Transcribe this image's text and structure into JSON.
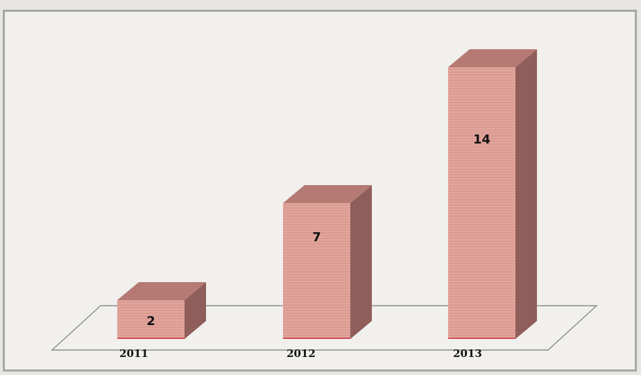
{
  "chart_data": {
    "type": "bar",
    "style": "3d-column",
    "categories": [
      "2011",
      "2012",
      "2013"
    ],
    "values": [
      2,
      7,
      14
    ],
    "title": "",
    "xlabel": "",
    "ylabel": "",
    "ylim": [
      0,
      14
    ],
    "grid": false,
    "legend": "none",
    "data_labels": true,
    "colors": {
      "bar_front": "#dc9a90",
      "bar_side": "#8f5e5a",
      "bar_top": "#b47a73",
      "bar_bottom_edge": "#d24a5a",
      "floor_stroke": "#8a8a86",
      "label_text": "#111111"
    }
  }
}
